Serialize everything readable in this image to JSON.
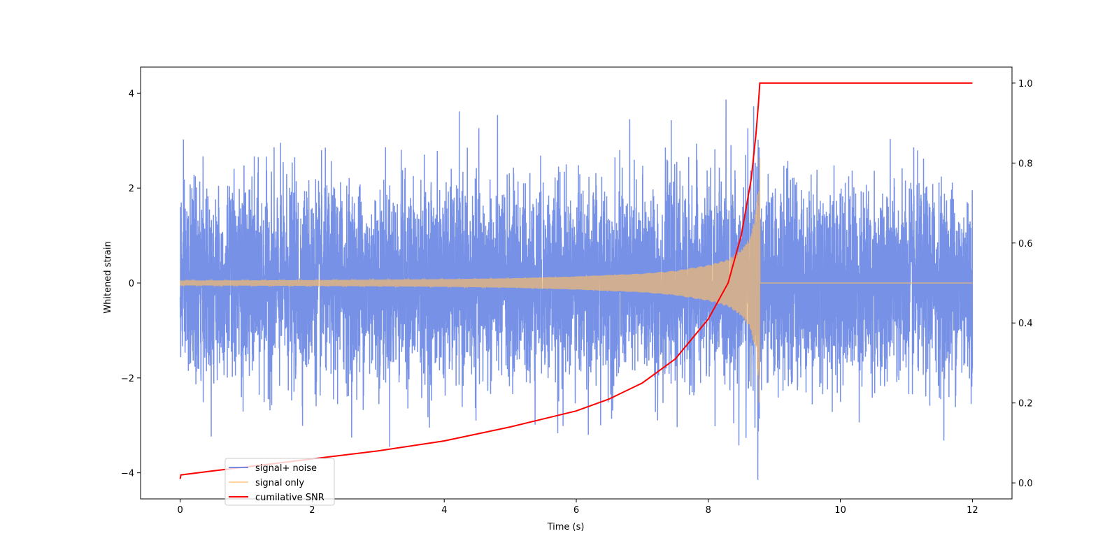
{
  "chart_data": {
    "type": "line",
    "title": "",
    "xlabel": "Time (s)",
    "ylabel": "Whitened strain",
    "y2label": "",
    "xlim": [
      -0.6,
      12.6
    ],
    "ylim": [
      -4.55,
      4.55
    ],
    "y2lim": [
      -0.04,
      1.04
    ],
    "x_ticks": [
      0,
      2,
      4,
      6,
      8,
      10,
      12
    ],
    "y_ticks": [
      -4,
      -2,
      0,
      2,
      4
    ],
    "y2_ticks": [
      0.0,
      0.2,
      0.4,
      0.6,
      0.8,
      1.0
    ],
    "x_tick_labels": [
      "0",
      "2",
      "4",
      "6",
      "8",
      "10",
      "12"
    ],
    "y_tick_labels": [
      "−4",
      "−2",
      "0",
      "2",
      "4"
    ],
    "y2_tick_labels": [
      "0.0",
      "0.2",
      "0.4",
      "0.6",
      "0.8",
      "1.0"
    ],
    "grid": false,
    "legend_position": "lower-left",
    "merger_time": 8.78,
    "series": [
      {
        "name": "signal+ noise",
        "axis": "left",
        "color": "#5576e0",
        "description": "whitened Gaussian noise (std ~1, peaks ~±4) plus the chirp signal, sampled from t=0 to t=12 s",
        "noise_std": 1.0
      },
      {
        "name": "signal only",
        "axis": "left",
        "color": "#ffbf66",
        "description": "inspiral chirp: amplitude ~0.05 growing to ~2.7 at t=8.78 s, then zero until t=12",
        "amplitude_points": {
          "x": [
            0,
            2,
            4,
            5,
            6,
            7,
            7.5,
            8.0,
            8.3,
            8.5,
            8.65,
            8.72,
            8.76,
            8.78
          ],
          "y": [
            0.05,
            0.06,
            0.08,
            0.1,
            0.14,
            0.2,
            0.26,
            0.38,
            0.5,
            0.7,
            1.0,
            1.5,
            2.1,
            2.7
          ]
        }
      },
      {
        "name": "cumilative SNR",
        "axis": "right",
        "color": "#ff0000",
        "x": [
          0,
          0.01,
          0.5,
          1,
          2,
          3,
          4,
          5,
          6,
          6.5,
          7,
          7.5,
          8.0,
          8.3,
          8.5,
          8.65,
          8.72,
          8.76,
          8.78,
          12
        ],
        "y": [
          0.01,
          0.02,
          0.03,
          0.04,
          0.06,
          0.08,
          0.105,
          0.14,
          0.18,
          0.21,
          0.25,
          0.31,
          0.41,
          0.5,
          0.62,
          0.76,
          0.87,
          0.95,
          1.0,
          1.0
        ]
      }
    ]
  }
}
